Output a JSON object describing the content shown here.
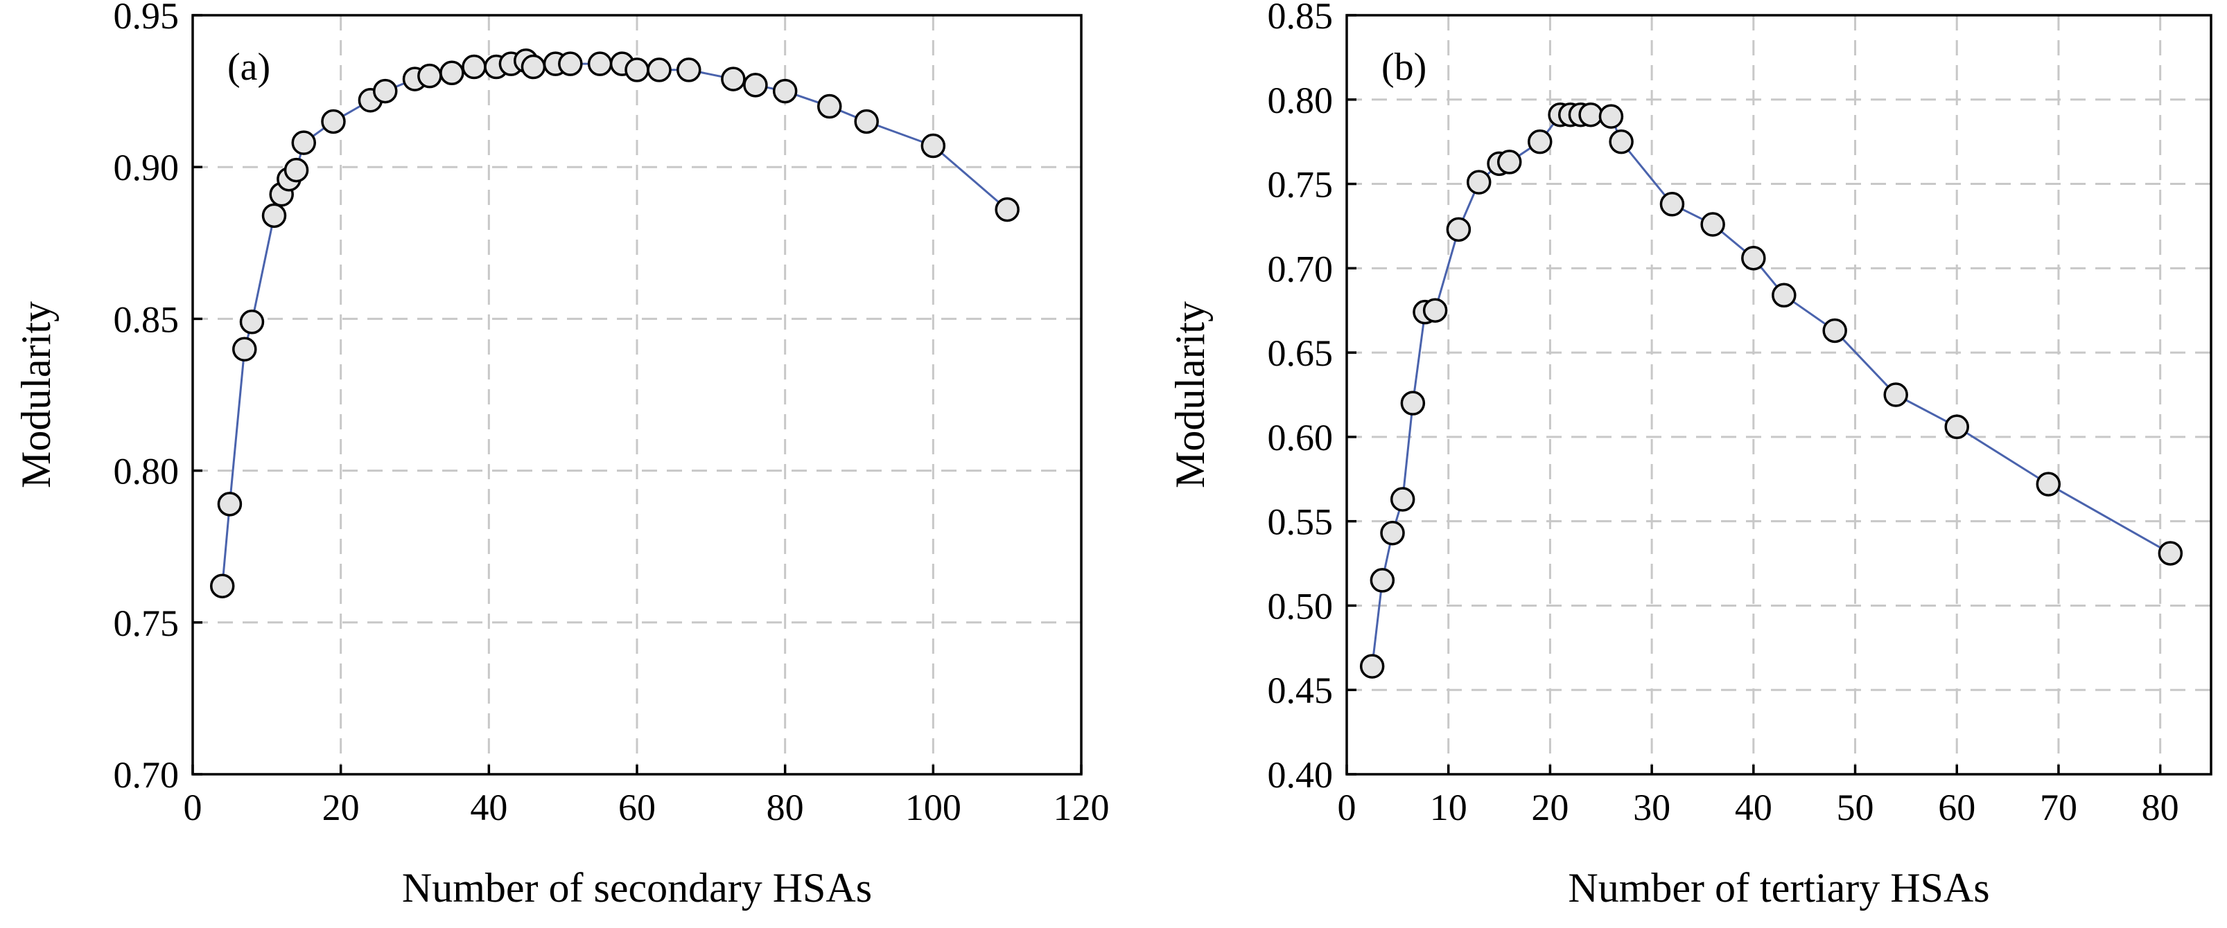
{
  "chart_data": [
    {
      "type": "line",
      "panel_label": "(a)",
      "xlabel": "Number of secondary HSAs",
      "ylabel": "Modularity",
      "xlim": [
        0,
        120
      ],
      "ylim": [
        0.7,
        0.95
      ],
      "xticks": [
        0,
        20,
        40,
        60,
        80,
        100,
        120
      ],
      "xtick_labels": [
        "0",
        "20",
        "40",
        "60",
        "80",
        "100",
        "120"
      ],
      "yticks": [
        0.7,
        0.75,
        0.8,
        0.85,
        0.9,
        0.95
      ],
      "ytick_labels": [
        "0.70",
        "0.75",
        "0.80",
        "0.85",
        "0.90",
        "0.95"
      ],
      "grid": true,
      "series": [
        {
          "x": [
            4,
            5,
            7,
            8,
            11,
            12,
            13,
            14,
            15,
            19,
            24,
            26,
            30,
            32,
            35,
            38,
            41,
            43,
            45,
            46,
            49,
            51,
            55,
            58,
            60,
            63,
            67,
            73,
            76,
            80,
            86,
            91,
            100,
            110
          ],
          "y": [
            0.762,
            0.789,
            0.84,
            0.849,
            0.884,
            0.891,
            0.896,
            0.899,
            0.908,
            0.915,
            0.922,
            0.925,
            0.929,
            0.93,
            0.931,
            0.933,
            0.933,
            0.934,
            0.935,
            0.933,
            0.934,
            0.934,
            0.934,
            0.934,
            0.932,
            0.932,
            0.932,
            0.929,
            0.927,
            0.925,
            0.92,
            0.915,
            0.907,
            0.886
          ]
        }
      ],
      "colors": {
        "line": "#4a63ad",
        "marker_fill": "#e5e5e5",
        "marker_stroke": "#000000",
        "grid": "#c8c8c8"
      }
    },
    {
      "type": "line",
      "panel_label": "(b)",
      "xlabel": "Number of tertiary HSAs",
      "ylabel": "Modularity",
      "xlim": [
        0,
        85
      ],
      "ylim": [
        0.4,
        0.85
      ],
      "xticks": [
        0,
        10,
        20,
        30,
        40,
        50,
        60,
        70,
        80
      ],
      "xtick_labels": [
        "0",
        "10",
        "20",
        "30",
        "40",
        "50",
        "60",
        "70",
        "80"
      ],
      "yticks": [
        0.4,
        0.45,
        0.5,
        0.55,
        0.6,
        0.65,
        0.7,
        0.75,
        0.8,
        0.85
      ],
      "ytick_labels": [
        "0.40",
        "0.45",
        "0.50",
        "0.55",
        "0.60",
        "0.65",
        "0.70",
        "0.75",
        "0.80",
        "0.85"
      ],
      "grid": true,
      "series": [
        {
          "x": [
            2.5,
            3.5,
            4.5,
            5.5,
            6.5,
            7.7,
            8.7,
            11,
            13,
            15,
            16,
            19,
            21,
            22,
            23,
            24,
            26,
            27,
            32,
            36,
            40,
            43,
            48,
            54,
            60,
            69,
            81
          ],
          "y": [
            0.464,
            0.515,
            0.543,
            0.563,
            0.62,
            0.674,
            0.675,
            0.723,
            0.751,
            0.762,
            0.763,
            0.775,
            0.791,
            0.791,
            0.791,
            0.791,
            0.79,
            0.775,
            0.738,
            0.726,
            0.706,
            0.684,
            0.663,
            0.625,
            0.606,
            0.572,
            0.531
          ]
        }
      ],
      "colors": {
        "line": "#4a63ad",
        "marker_fill": "#e5e5e5",
        "marker_stroke": "#000000",
        "grid": "#c8c8c8"
      }
    }
  ]
}
